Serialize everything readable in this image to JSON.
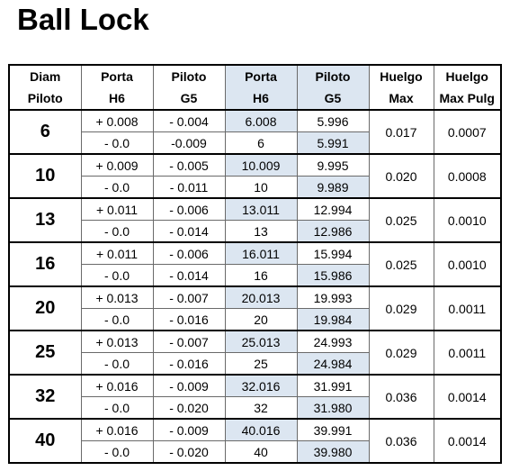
{
  "title": "Ball Lock",
  "headers": [
    {
      "line1": "Diam",
      "line2": "Piloto"
    },
    {
      "line1": "Porta",
      "line2": "H6"
    },
    {
      "line1": "Piloto",
      "line2": "G5"
    },
    {
      "line1": "Porta",
      "line2": "H6"
    },
    {
      "line1": "Piloto",
      "line2": "G5"
    },
    {
      "line1": "Huelgo",
      "line2": "Max"
    },
    {
      "line1": "Huelgo",
      "line2": "Max Pulg"
    }
  ],
  "colors": {
    "shade": "#dce6f1"
  },
  "rows": [
    {
      "diam": "6",
      "porta_tol": [
        "+ 0.008",
        "- 0.0"
      ],
      "piloto_tol": [
        "- 0.004",
        "-0.009"
      ],
      "porta_h6": [
        "6.008",
        "6"
      ],
      "piloto_g5": [
        "5.996",
        "5.991"
      ],
      "huelgo_max": "0.017",
      "huelgo_pulg": "0.0007"
    },
    {
      "diam": "10",
      "porta_tol": [
        "+ 0.009",
        "- 0.0"
      ],
      "piloto_tol": [
        "- 0.005",
        "- 0.011"
      ],
      "porta_h6": [
        "10.009",
        "10"
      ],
      "piloto_g5": [
        "9.995",
        "9.989"
      ],
      "huelgo_max": "0.020",
      "huelgo_pulg": "0.0008"
    },
    {
      "diam": "13",
      "porta_tol": [
        "+ 0.011",
        "- 0.0"
      ],
      "piloto_tol": [
        "- 0.006",
        "- 0.014"
      ],
      "porta_h6": [
        "13.011",
        "13"
      ],
      "piloto_g5": [
        "12.994",
        "12.986"
      ],
      "huelgo_max": "0.025",
      "huelgo_pulg": "0.0010"
    },
    {
      "diam": "16",
      "porta_tol": [
        "+ 0.011",
        "- 0.0"
      ],
      "piloto_tol": [
        "- 0.006",
        "- 0.014"
      ],
      "porta_h6": [
        "16.011",
        "16"
      ],
      "piloto_g5": [
        "15.994",
        "15.986"
      ],
      "huelgo_max": "0.025",
      "huelgo_pulg": "0.0010"
    },
    {
      "diam": "20",
      "porta_tol": [
        "+ 0.013",
        "- 0.0"
      ],
      "piloto_tol": [
        "- 0.007",
        "- 0.016"
      ],
      "porta_h6": [
        "20.013",
        "20"
      ],
      "piloto_g5": [
        "19.993",
        "19.984"
      ],
      "huelgo_max": "0.029",
      "huelgo_pulg": "0.0011"
    },
    {
      "diam": "25",
      "porta_tol": [
        "+ 0.013",
        "- 0.0"
      ],
      "piloto_tol": [
        "- 0.007",
        "- 0.016"
      ],
      "porta_h6": [
        "25.013",
        "25"
      ],
      "piloto_g5": [
        "24.993",
        "24.984"
      ],
      "huelgo_max": "0.029",
      "huelgo_pulg": "0.0011"
    },
    {
      "diam": "32",
      "porta_tol": [
        "+ 0.016",
        "- 0.0"
      ],
      "piloto_tol": [
        "- 0.009",
        "- 0.020"
      ],
      "porta_h6": [
        "32.016",
        "32"
      ],
      "piloto_g5": [
        "31.991",
        "31.980"
      ],
      "huelgo_max": "0.036",
      "huelgo_pulg": "0.0014"
    },
    {
      "diam": "40",
      "porta_tol": [
        "+ 0.016",
        "- 0.0"
      ],
      "piloto_tol": [
        "- 0.009",
        "- 0.020"
      ],
      "porta_h6": [
        "40.016",
        "40"
      ],
      "piloto_g5": [
        "39.991",
        "39.980"
      ],
      "huelgo_max": "0.036",
      "huelgo_pulg": "0.0014"
    }
  ]
}
